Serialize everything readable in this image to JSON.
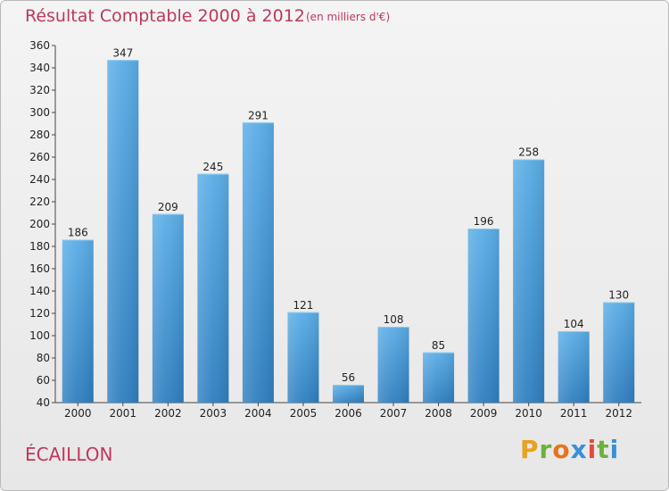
{
  "header": {
    "title": "Résultat Comptable 2000 à 2012",
    "subtitle": "(en milliers d'€)"
  },
  "footer": {
    "commune": "ÉCAILLON",
    "logo_text": "Proxiti"
  },
  "colors": {
    "title": "#c0375a",
    "bar_top": "#5aade6",
    "bar_bottom": "#2f7fc0"
  },
  "chart_data": {
    "type": "bar",
    "categories": [
      "2000",
      "2001",
      "2002",
      "2003",
      "2004",
      "2005",
      "2006",
      "2007",
      "2008",
      "2009",
      "2010",
      "2011",
      "2012"
    ],
    "values": [
      186,
      347,
      209,
      245,
      291,
      121,
      56,
      108,
      85,
      196,
      258,
      104,
      130
    ],
    "ylim": [
      40,
      360
    ],
    "yticks": [
      40,
      60,
      80,
      100,
      120,
      140,
      160,
      180,
      200,
      220,
      240,
      260,
      280,
      300,
      320,
      340,
      360
    ],
    "grid": false,
    "legend": "none"
  }
}
